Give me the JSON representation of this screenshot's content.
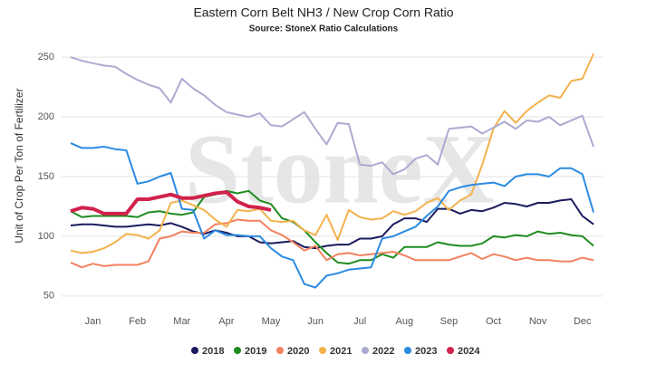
{
  "chart_data": {
    "type": "line",
    "title": "Eastern Corn Belt NH3 / New Crop Corn Ratio",
    "subtitle": "Source: StoneX Ratio Calculations",
    "watermark": "StoneX",
    "y_label": "Unit of Crop Per Ton of Fertilizer",
    "categories": [
      null,
      null,
      "Jan",
      null,
      null,
      null,
      "Feb",
      null,
      null,
      null,
      "Mar",
      null,
      null,
      null,
      "Apr",
      null,
      null,
      null,
      "May",
      null,
      null,
      null,
      "Jun",
      null,
      null,
      null,
      "Jul",
      null,
      null,
      null,
      "Aug",
      null,
      null,
      null,
      "Sep",
      null,
      null,
      null,
      "Oct",
      null,
      null,
      null,
      "Nov",
      null,
      null,
      null,
      "Dec",
      null
    ],
    "ylim": [
      40,
      260
    ],
    "yticks": [
      50,
      100,
      150,
      200,
      250
    ],
    "grid": true,
    "legend": "bottom",
    "series": [
      {
        "name": "2018",
        "color": "#1b1b5f",
        "values": [
          109,
          110,
          110,
          109,
          108,
          108,
          109,
          110,
          109,
          111,
          108,
          104,
          102,
          105,
          103,
          100,
          100,
          95,
          94,
          95,
          96,
          91,
          90,
          92,
          93,
          93,
          98,
          98,
          100,
          110,
          115,
          115,
          112,
          123,
          123,
          119,
          122,
          121,
          124,
          128,
          127,
          125,
          128,
          128,
          130,
          131,
          117,
          110
        ]
      },
      {
        "name": "2019",
        "color": "#1f8c1f",
        "values": [
          121,
          116,
          117,
          117,
          117,
          117,
          116,
          120,
          121,
          119,
          118,
          120,
          133,
          135,
          138,
          136,
          138,
          130,
          127,
          115,
          112,
          105,
          95,
          86,
          78,
          77,
          80,
          80,
          85,
          82,
          91,
          91,
          91,
          95,
          93,
          92,
          92,
          94,
          100,
          99,
          101,
          100,
          104,
          102,
          103,
          101,
          100,
          92
        ]
      },
      {
        "name": "2020",
        "color": "#f2825f",
        "values": [
          78,
          74,
          77,
          75,
          76,
          76,
          76,
          79,
          98,
          100,
          104,
          103,
          103,
          110,
          111,
          114,
          113,
          113,
          105,
          101,
          95,
          88,
          92,
          80,
          85,
          86,
          84,
          85,
          86,
          87,
          84,
          80,
          80,
          80,
          80,
          83,
          86,
          81,
          85,
          83,
          80,
          82,
          80,
          80,
          79,
          79,
          82,
          80
        ]
      },
      {
        "name": "2021",
        "color": "#f3b24c",
        "values": [
          88,
          86,
          87,
          90,
          95,
          102,
          101,
          98,
          105,
          128,
          130,
          126,
          122,
          114,
          108,
          122,
          121,
          123,
          113,
          112,
          113,
          105,
          101,
          118,
          97,
          122,
          116,
          114,
          115,
          121,
          118,
          121,
          128,
          132,
          122,
          130,
          135,
          160,
          190,
          205,
          195,
          205,
          212,
          218,
          216,
          230,
          232,
          253
        ]
      },
      {
        "name": "2022",
        "color": "#ababd2",
        "values": [
          250,
          247,
          245,
          243,
          242,
          236,
          231,
          227,
          224,
          212,
          232,
          224,
          218,
          210,
          204,
          202,
          200,
          203,
          193,
          192,
          198,
          204,
          190,
          177,
          195,
          194,
          160,
          159,
          162,
          152,
          156,
          165,
          168,
          160,
          190,
          191,
          192,
          186,
          191,
          196,
          190,
          197,
          196,
          200,
          193,
          197,
          201,
          175
        ]
      },
      {
        "name": "2023",
        "color": "#2b8be2",
        "values": [
          178,
          174,
          174,
          175,
          173,
          172,
          144,
          146,
          150,
          153,
          123,
          122,
          98,
          105,
          101,
          101,
          100,
          100,
          90,
          83,
          80,
          60,
          57,
          67,
          69,
          72,
          73,
          74,
          98,
          100,
          104,
          108,
          117,
          125,
          138,
          141,
          143,
          144,
          145,
          142,
          150,
          152,
          152,
          150,
          157,
          157,
          152,
          120
        ]
      },
      {
        "name": "2024",
        "color": "#d1224c",
        "values": [
          121,
          124,
          123,
          119,
          119,
          119,
          131,
          131,
          133,
          135,
          132,
          132,
          134,
          136,
          137,
          129,
          125,
          124,
          122,
          null,
          null,
          null,
          null,
          null,
          null,
          null,
          null,
          null,
          null,
          null,
          null,
          null,
          null,
          null,
          null,
          null,
          null,
          null,
          null,
          null,
          null,
          null,
          null,
          null,
          null,
          null,
          null,
          null
        ]
      }
    ]
  }
}
